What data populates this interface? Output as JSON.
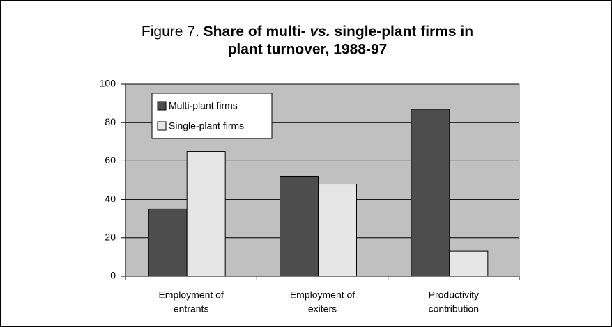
{
  "chart_data": {
    "type": "bar",
    "title": [
      "Figure 7.",
      "Share of multi-",
      "vs.",
      "single-plant firms in",
      "plant turnover, 1988-97"
    ],
    "categories": [
      [
        "Employment of",
        "entrants"
      ],
      [
        "Employment of",
        "exiters"
      ],
      [
        "Productivity",
        "contribution"
      ]
    ],
    "series": [
      {
        "name": "Multi-plant firms",
        "color": "#4d4d4d",
        "values": [
          35,
          52,
          87
        ]
      },
      {
        "name": "Single-plant firms",
        "color": "#e6e6e6",
        "values": [
          65,
          48,
          13
        ]
      }
    ],
    "ylim": [
      0,
      100
    ],
    "yticks": [
      0,
      20,
      40,
      60,
      80,
      100
    ],
    "grid": true,
    "legend": "upper left",
    "plot_background": "#c0c0c0"
  }
}
